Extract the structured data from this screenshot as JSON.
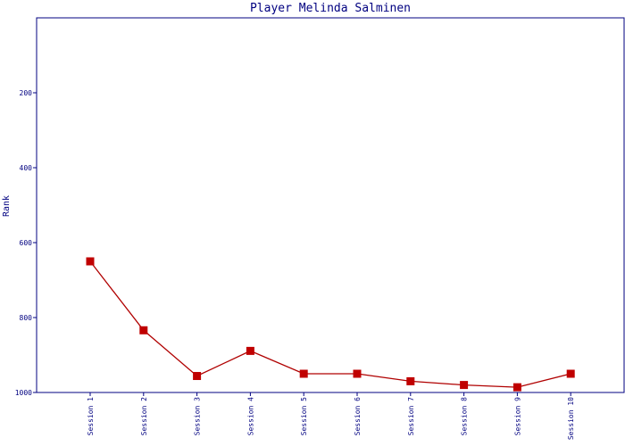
{
  "chart_data": {
    "type": "line",
    "title": "Player Melinda Salminen",
    "xlabel": "",
    "ylabel": "Rank",
    "categories": [
      "Session 1",
      "Session 2",
      "Session 3",
      "Session 4",
      "Session 5",
      "Session 6",
      "Session 7",
      "Session 8",
      "Session 9",
      "Session 10"
    ],
    "series": [
      {
        "values": [
          650,
          834,
          956,
          889,
          950,
          950,
          970,
          980,
          986,
          950
        ]
      }
    ],
    "ylim": [
      1000,
      0
    ],
    "y_inverted": true,
    "yticks": [
      200,
      400,
      600,
      800,
      1000
    ],
    "grid": false,
    "colors": {
      "line": "#b00000",
      "marker": "#c00000",
      "axis": "#000080",
      "text": "#000080"
    }
  }
}
